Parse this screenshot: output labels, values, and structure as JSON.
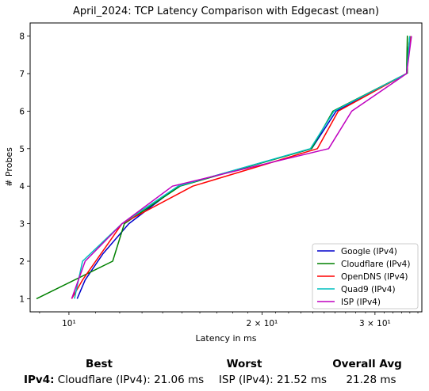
{
  "chart_data": {
    "type": "line",
    "title": "April_2024: TCP Latency Comparison with Edgecast (mean)",
    "xlabel": "Latency in ms",
    "ylabel": "# Probes",
    "xscale": "log",
    "xlim": [
      8.7,
      35.5
    ],
    "ylim": [
      0.65,
      8.35
    ],
    "x_major_ticks": [
      {
        "value": 10,
        "label": "10¹"
      },
      {
        "value": 20,
        "label": "2 × 10¹"
      },
      {
        "value": 30,
        "label": "3 × 10¹"
      }
    ],
    "yticks": [
      1,
      2,
      3,
      4,
      5,
      6,
      7,
      8
    ],
    "legend_position": "lower-right",
    "series": [
      {
        "name": "Google (IPv4)",
        "color": "#0000cc",
        "points": [
          [
            10.3,
            1
          ],
          [
            10.6,
            1.5
          ],
          [
            11.3,
            2.2
          ],
          [
            12.4,
            3
          ],
          [
            14.8,
            4
          ],
          [
            23.9,
            5
          ],
          [
            26.1,
            6
          ],
          [
            33.6,
            7
          ],
          [
            34.0,
            8
          ]
        ]
      },
      {
        "name": "Cloudflare (IPv4)",
        "color": "#008000",
        "points": [
          [
            8.9,
            1
          ],
          [
            11.7,
            2
          ],
          [
            12.2,
            3
          ],
          [
            14.9,
            4
          ],
          [
            23.9,
            5
          ],
          [
            25.8,
            6
          ],
          [
            33.6,
            7
          ],
          [
            33.7,
            8
          ],
          [
            33.7,
            7
          ]
        ]
      },
      {
        "name": "OpenDNS (IPv4)",
        "color": "#ff0000",
        "points": [
          [
            10.1,
            1
          ],
          [
            10.5,
            1.5
          ],
          [
            12.1,
            3
          ],
          [
            15.6,
            4
          ],
          [
            24.4,
            5
          ],
          [
            26.3,
            6
          ],
          [
            33.6,
            7
          ],
          [
            34.1,
            8
          ]
        ]
      },
      {
        "name": "Quad9 (IPv4)",
        "color": "#00bfbf",
        "points": [
          [
            10.2,
            1
          ],
          [
            10.5,
            2
          ],
          [
            12.1,
            3
          ],
          [
            14.8,
            4
          ],
          [
            23.8,
            5
          ],
          [
            25.9,
            6
          ],
          [
            33.6,
            7
          ],
          [
            34.0,
            8
          ]
        ]
      },
      {
        "name": "ISP (IPv4)",
        "color": "#bf00bf",
        "points": [
          [
            10.1,
            1
          ],
          [
            10.6,
            2
          ],
          [
            12.1,
            3
          ],
          [
            14.5,
            4
          ],
          [
            25.4,
            5
          ],
          [
            27.6,
            6
          ],
          [
            33.6,
            7
          ],
          [
            34.2,
            8
          ]
        ]
      }
    ]
  },
  "summary": {
    "row_label": "IPv4",
    "best_header": "Best",
    "worst_header": "Worst",
    "avg_header": "Overall Avg",
    "best_value": "Cloudflare (IPv4): 21.06 ms",
    "worst_value": "ISP (IPv4): 21.52 ms",
    "avg_value": "21.28 ms"
  }
}
